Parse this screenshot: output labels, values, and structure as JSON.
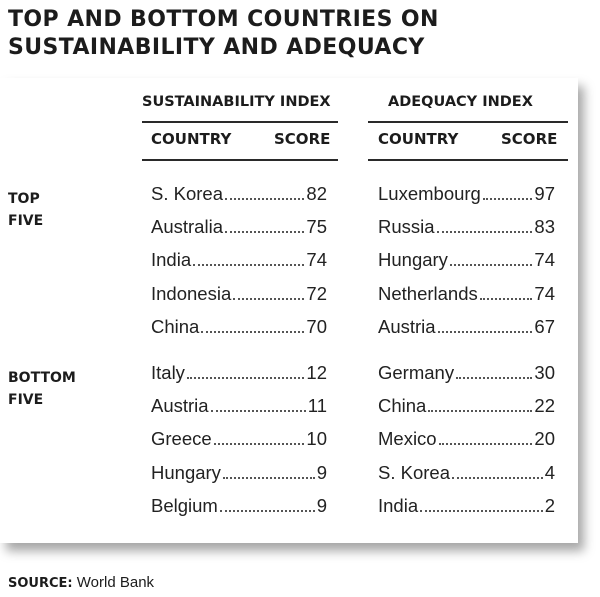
{
  "title": "TOP AND BOTTOM COUNTRIES ON SUSTAINABILITY AND ADEQUACY",
  "sustainability_header": "SUSTAINABILITY INDEX",
  "adequacy_header": "ADEQUACY INDEX",
  "col_country": "COUNTRY",
  "col_score": "SCORE",
  "groups": {
    "top": [
      "TOP",
      "FIVE"
    ],
    "bottom": [
      "BOTTOM",
      "FIVE"
    ]
  },
  "source_label": "SOURCE:",
  "source_text": "World Bank",
  "chart_data": {
    "type": "table",
    "title": "TOP AND BOTTOM COUNTRIES ON SUSTAINABILITY AND ADEQUACY",
    "columns": [
      "SUSTAINABILITY INDEX",
      "ADEQUACY INDEX"
    ],
    "sustainability": {
      "top": [
        {
          "country": "S. Korea",
          "score": "82"
        },
        {
          "country": "Australia",
          "score": "75"
        },
        {
          "country": "India",
          "score": "74"
        },
        {
          "country": "Indonesia",
          "score": "72"
        },
        {
          "country": "China",
          "score": "70"
        }
      ],
      "bottom": [
        {
          "country": "Italy",
          "score": "12"
        },
        {
          "country": "Austria",
          "score": "11"
        },
        {
          "country": "Greece",
          "score": "10"
        },
        {
          "country": "Hungary",
          "score": "9"
        },
        {
          "country": "Belgium",
          "score": "9"
        }
      ]
    },
    "adequacy": {
      "top": [
        {
          "country": "Luxembourg",
          "score": "97"
        },
        {
          "country": "Russia",
          "score": "83"
        },
        {
          "country": "Hungary",
          "score": "74"
        },
        {
          "country": "Netherlands",
          "score": "74"
        },
        {
          "country": "Austria",
          "score": "67"
        }
      ],
      "bottom": [
        {
          "country": "Germany",
          "score": "30"
        },
        {
          "country": "China",
          "score": "22"
        },
        {
          "country": "Mexico",
          "score": "20"
        },
        {
          "country": "S. Korea",
          "score": "4"
        },
        {
          "country": "India",
          "score": "2"
        }
      ]
    }
  }
}
